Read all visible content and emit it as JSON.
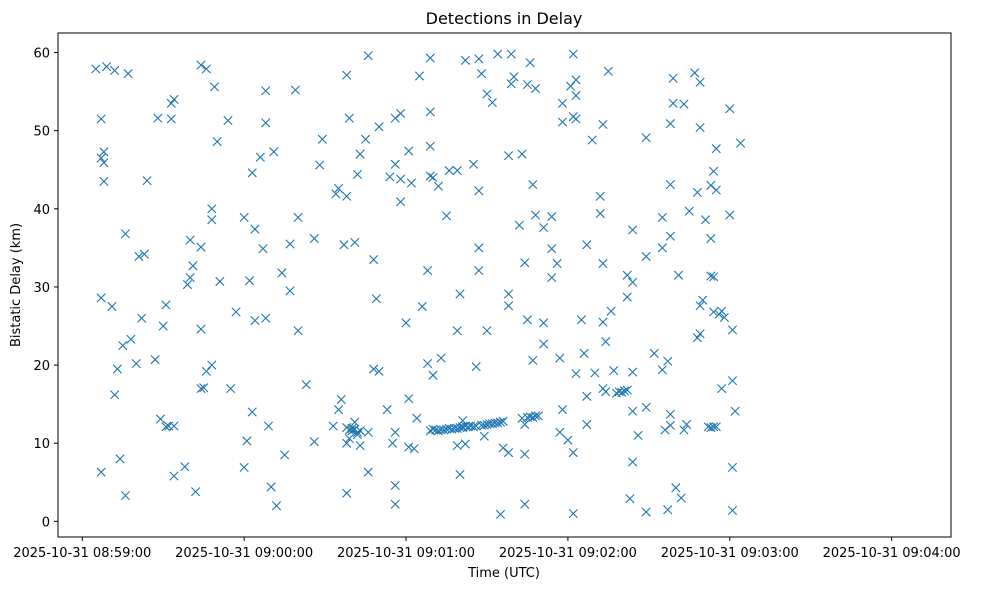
{
  "chart_data": {
    "type": "scatter",
    "title": "Detections in Delay",
    "xlabel": "Time (UTC)",
    "ylabel": "Bistatic Delay (km)",
    "marker": "x",
    "color": "#1f77b4",
    "grid": false,
    "x_tick_labels": [
      "2025-10-31 08:59:00",
      "2025-10-31 09:00:00",
      "2025-10-31 09:01:00",
      "2025-10-31 09:02:00",
      "2025-10-31 09:03:00",
      "2025-10-31 09:04:00"
    ],
    "xlim": [
      "2025-10-31 08:58:51",
      "2025-10-31 09:04:22"
    ],
    "y_ticks": [
      0,
      10,
      20,
      30,
      40,
      50,
      60
    ],
    "ylim": [
      -2,
      62.5
    ],
    "points": [
      [
        "08:59:05",
        57.9
      ],
      [
        "08:59:07",
        6.3
      ],
      [
        "08:59:07",
        28.6
      ],
      [
        "08:59:07",
        51.5
      ],
      [
        "08:59:07",
        46.5
      ],
      [
        "08:59:08",
        47.3
      ],
      [
        "08:59:08",
        43.5
      ],
      [
        "08:59:08",
        45.9
      ],
      [
        "08:59:09",
        58.2
      ],
      [
        "08:59:11",
        27.5
      ],
      [
        "08:59:12",
        57.7
      ],
      [
        "08:59:12",
        16.2
      ],
      [
        "08:59:13",
        19.5
      ],
      [
        "08:59:14",
        8.0
      ],
      [
        "08:59:15",
        22.5
      ],
      [
        "08:59:16",
        3.3
      ],
      [
        "08:59:16",
        36.8
      ],
      [
        "08:59:17",
        57.3
      ],
      [
        "08:59:18",
        23.3
      ],
      [
        "08:59:20",
        20.2
      ],
      [
        "08:59:21",
        33.9
      ],
      [
        "08:59:22",
        26.0
      ],
      [
        "08:59:23",
        34.2
      ],
      [
        "08:59:24",
        43.6
      ],
      [
        "08:59:27",
        20.7
      ],
      [
        "08:59:28",
        51.6
      ],
      [
        "08:59:29",
        13.1
      ],
      [
        "08:59:30",
        25.0
      ],
      [
        "08:59:31",
        27.7
      ],
      [
        "08:59:31",
        12.1
      ],
      [
        "08:59:32",
        12.2
      ],
      [
        "08:59:33",
        51.5
      ],
      [
        "08:59:33",
        53.5
      ],
      [
        "08:59:34",
        54.0
      ],
      [
        "08:59:34",
        12.2
      ],
      [
        "08:59:34",
        5.8
      ],
      [
        "08:59:38",
        7.0
      ],
      [
        "08:59:39",
        30.3
      ],
      [
        "08:59:40",
        36.0
      ],
      [
        "08:59:40",
        31.2
      ],
      [
        "08:59:41",
        32.7
      ],
      [
        "08:59:42",
        3.8
      ],
      [
        "08:59:44",
        35.1
      ],
      [
        "08:59:44",
        24.6
      ],
      [
        "08:59:44",
        17.0
      ],
      [
        "08:59:45",
        17.1
      ],
      [
        "08:59:44",
        58.4
      ],
      [
        "08:59:46",
        57.9
      ],
      [
        "08:59:46",
        19.2
      ],
      [
        "08:59:48",
        20.0
      ],
      [
        "08:59:48",
        40.0
      ],
      [
        "08:59:48",
        38.6
      ],
      [
        "08:59:49",
        55.6
      ],
      [
        "08:59:50",
        48.6
      ],
      [
        "08:59:51",
        30.7
      ],
      [
        "08:59:54",
        51.3
      ],
      [
        "08:59:55",
        17.0
      ],
      [
        "08:59:57",
        26.8
      ],
      [
        "09:00:00",
        38.9
      ],
      [
        "09:00:00",
        6.9
      ],
      [
        "09:00:01",
        10.3
      ],
      [
        "09:00:02",
        30.8
      ],
      [
        "09:00:03",
        44.6
      ],
      [
        "09:00:03",
        14.0
      ],
      [
        "09:00:04",
        37.4
      ],
      [
        "09:00:04",
        25.7
      ],
      [
        "09:00:06",
        46.6
      ],
      [
        "09:00:07",
        34.9
      ],
      [
        "09:00:08",
        55.1
      ],
      [
        "09:00:08",
        51.0
      ],
      [
        "09:00:08",
        26.0
      ],
      [
        "09:00:09",
        12.2
      ],
      [
        "09:00:10",
        4.4
      ],
      [
        "09:00:11",
        47.3
      ],
      [
        "09:00:12",
        2.0
      ],
      [
        "09:00:14",
        31.8
      ],
      [
        "09:00:15",
        8.5
      ],
      [
        "09:00:17",
        35.5
      ],
      [
        "09:00:17",
        29.5
      ],
      [
        "09:00:19",
        55.2
      ],
      [
        "09:00:20",
        38.9
      ],
      [
        "09:00:20",
        24.4
      ],
      [
        "09:00:23",
        17.5
      ],
      [
        "09:00:26",
        10.2
      ],
      [
        "09:00:26",
        36.2
      ],
      [
        "09:00:28",
        45.6
      ],
      [
        "09:00:29",
        48.9
      ],
      [
        "09:00:33",
        12.2
      ],
      [
        "09:00:34",
        41.9
      ],
      [
        "09:00:35",
        14.3
      ],
      [
        "09:00:35",
        42.6
      ],
      [
        "09:00:36",
        15.6
      ],
      [
        "09:00:37",
        35.4
      ],
      [
        "09:00:38",
        57.1
      ],
      [
        "09:00:38",
        12.0
      ],
      [
        "09:00:38",
        41.6
      ],
      [
        "09:00:38",
        10.0
      ],
      [
        "09:00:38",
        3.6
      ],
      [
        "09:00:39",
        11.7
      ],
      [
        "09:00:39",
        51.6
      ],
      [
        "09:00:39",
        10.6
      ],
      [
        "09:00:40",
        11.9
      ],
      [
        "09:00:40",
        11.6
      ],
      [
        "09:00:41",
        35.7
      ],
      [
        "09:00:41",
        12.7
      ],
      [
        "09:00:41",
        11.8
      ],
      [
        "09:00:42",
        11.4
      ],
      [
        "09:00:42",
        11.1
      ],
      [
        "09:00:43",
        9.7
      ],
      [
        "09:00:42",
        44.4
      ],
      [
        "09:00:43",
        47.0
      ],
      [
        "09:00:43",
        11.6
      ],
      [
        "09:00:45",
        48.9
      ],
      [
        "09:00:46",
        11.4
      ],
      [
        "09:00:46",
        6.3
      ],
      [
        "09:00:46",
        59.6
      ],
      [
        "09:00:48",
        33.5
      ],
      [
        "09:00:48",
        19.5
      ],
      [
        "09:00:49",
        28.5
      ],
      [
        "09:00:50",
        19.2
      ],
      [
        "09:00:50",
        50.5
      ],
      [
        "09:00:53",
        14.3
      ],
      [
        "09:00:54",
        44.1
      ],
      [
        "09:00:55",
        10.0
      ],
      [
        "09:00:56",
        11.4
      ],
      [
        "09:00:56",
        2.2
      ],
      [
        "09:00:56",
        4.6
      ],
      [
        "09:00:56",
        45.7
      ],
      [
        "09:00:56",
        51.6
      ],
      [
        "09:00:58",
        40.9
      ],
      [
        "09:00:58",
        43.8
      ],
      [
        "09:00:58",
        52.2
      ],
      [
        "09:01:00",
        25.4
      ],
      [
        "09:01:01",
        9.5
      ],
      [
        "09:01:01",
        15.7
      ],
      [
        "09:01:01",
        47.4
      ],
      [
        "09:01:02",
        43.3
      ],
      [
        "09:01:03",
        9.3
      ],
      [
        "09:01:04",
        13.2
      ],
      [
        "09:01:05",
        57.0
      ],
      [
        "09:01:06",
        27.5
      ],
      [
        "09:01:08",
        32.1
      ],
      [
        "09:01:08",
        20.2
      ],
      [
        "09:01:09",
        59.3
      ],
      [
        "09:01:09",
        52.4
      ],
      [
        "09:01:09",
        48.0
      ],
      [
        "09:01:09",
        44.2
      ],
      [
        "09:01:09",
        11.6
      ],
      [
        "09:01:10",
        18.7
      ],
      [
        "09:01:10",
        44.0
      ],
      [
        "09:01:10",
        11.8
      ],
      [
        "09:01:11",
        11.7
      ],
      [
        "09:01:12",
        11.6
      ],
      [
        "09:01:12",
        42.9
      ],
      [
        "09:01:13",
        11.7
      ],
      [
        "09:01:13",
        20.9
      ],
      [
        "09:01:14",
        11.7
      ],
      [
        "09:01:15",
        11.8
      ],
      [
        "09:01:15",
        39.1
      ],
      [
        "09:01:16",
        11.9
      ],
      [
        "09:01:16",
        44.9
      ],
      [
        "09:01:17",
        11.8
      ],
      [
        "09:01:18",
        11.9
      ],
      [
        "09:01:19",
        11.9
      ],
      [
        "09:01:19",
        24.4
      ],
      [
        "09:01:19",
        9.7
      ],
      [
        "09:01:19",
        44.9
      ],
      [
        "09:01:20",
        12.0
      ],
      [
        "09:01:20",
        6.0
      ],
      [
        "09:01:20",
        29.1
      ],
      [
        "09:01:21",
        12.0
      ],
      [
        "09:01:21",
        12.9
      ],
      [
        "09:01:21",
        12.1
      ],
      [
        "09:01:22",
        12.2
      ],
      [
        "09:01:22",
        9.9
      ],
      [
        "09:01:22",
        59.0
      ],
      [
        "09:01:23",
        12.1
      ],
      [
        "09:01:24",
        12.2
      ],
      [
        "09:01:25",
        12.1
      ],
      [
        "09:01:25",
        45.7
      ],
      [
        "09:01:26",
        12.2
      ],
      [
        "09:01:26",
        19.8
      ],
      [
        "09:01:27",
        42.3
      ],
      [
        "09:01:27",
        32.1
      ],
      [
        "09:01:27",
        35.0
      ],
      [
        "09:01:27",
        59.2
      ],
      [
        "09:01:28",
        12.3
      ],
      [
        "09:01:28",
        57.3
      ],
      [
        "09:01:29",
        12.3
      ],
      [
        "09:01:29",
        10.9
      ],
      [
        "09:01:30",
        12.4
      ],
      [
        "09:01:30",
        24.4
      ],
      [
        "09:01:30",
        54.7
      ],
      [
        "09:01:31",
        12.5
      ],
      [
        "09:01:32",
        12.5
      ],
      [
        "09:01:32",
        53.6
      ],
      [
        "09:01:33",
        12.6
      ],
      [
        "09:01:34",
        12.6
      ],
      [
        "09:01:34",
        59.8
      ],
      [
        "09:01:35",
        12.7
      ],
      [
        "09:01:35",
        0.9
      ],
      [
        "09:01:36",
        9.4
      ],
      [
        "09:01:36",
        12.8
      ],
      [
        "09:01:38",
        8.8
      ],
      [
        "09:01:38",
        27.6
      ],
      [
        "09:01:38",
        29.1
      ],
      [
        "09:01:38",
        46.8
      ],
      [
        "09:01:39",
        56.0
      ],
      [
        "09:01:39",
        59.8
      ],
      [
        "09:01:40",
        56.9
      ],
      [
        "09:01:42",
        37.9
      ],
      [
        "09:01:43",
        47.0
      ],
      [
        "09:01:43",
        13.2
      ],
      [
        "09:01:44",
        33.1
      ],
      [
        "09:01:44",
        8.6
      ],
      [
        "09:01:44",
        2.2
      ],
      [
        "09:01:44",
        12.4
      ],
      [
        "09:01:45",
        13.3
      ],
      [
        "09:01:45",
        55.9
      ],
      [
        "09:01:45",
        25.8
      ],
      [
        "09:01:46",
        58.7
      ],
      [
        "09:01:46",
        13.4
      ],
      [
        "09:01:47",
        43.1
      ],
      [
        "09:01:47",
        20.6
      ],
      [
        "09:01:47",
        13.3
      ],
      [
        "09:01:48",
        13.5
      ],
      [
        "09:01:48",
        39.2
      ],
      [
        "09:01:48",
        55.4
      ],
      [
        "09:01:49",
        13.5
      ],
      [
        "09:01:51",
        37.6
      ],
      [
        "09:01:51",
        25.4
      ],
      [
        "09:01:51",
        22.7
      ],
      [
        "09:01:54",
        34.9
      ],
      [
        "09:01:54",
        39.0
      ],
      [
        "09:01:54",
        31.2
      ],
      [
        "09:01:56",
        33.0
      ],
      [
        "09:01:57",
        20.9
      ],
      [
        "09:01:57",
        11.4
      ],
      [
        "09:01:58",
        14.3
      ],
      [
        "09:01:58",
        51.1
      ],
      [
        "09:01:58",
        53.5
      ],
      [
        "09:02:00",
        10.4
      ],
      [
        "09:02:01",
        55.7
      ],
      [
        "09:02:02",
        8.8
      ],
      [
        "09:02:02",
        51.8
      ],
      [
        "09:02:02",
        1.0
      ],
      [
        "09:02:02",
        59.8
      ],
      [
        "09:02:03",
        18.9
      ],
      [
        "09:02:03",
        54.5
      ],
      [
        "09:02:03",
        51.5
      ],
      [
        "09:02:03",
        56.5
      ],
      [
        "09:02:05",
        25.8
      ],
      [
        "09:02:06",
        21.5
      ],
      [
        "09:02:07",
        16.0
      ],
      [
        "09:02:07",
        12.4
      ],
      [
        "09:02:07",
        35.4
      ],
      [
        "09:02:09",
        48.8
      ],
      [
        "09:02:10",
        19.0
      ],
      [
        "09:02:12",
        39.4
      ],
      [
        "09:02:12",
        41.6
      ],
      [
        "09:02:13",
        50.8
      ],
      [
        "09:02:13",
        33.0
      ],
      [
        "09:02:13",
        25.5
      ],
      [
        "09:02:13",
        17.0
      ],
      [
        "09:02:14",
        16.6
      ],
      [
        "09:02:14",
        23.0
      ],
      [
        "09:02:15",
        57.6
      ],
      [
        "09:02:16",
        26.9
      ],
      [
        "09:02:17",
        19.3
      ],
      [
        "09:02:18",
        16.4
      ],
      [
        "09:02:19",
        16.6
      ],
      [
        "09:02:20",
        16.5
      ],
      [
        "09:02:21",
        16.7
      ],
      [
        "09:02:22",
        28.7
      ],
      [
        "09:02:22",
        31.5
      ],
      [
        "09:02:22",
        16.8
      ],
      [
        "09:02:23",
        2.9
      ],
      [
        "09:02:24",
        30.6
      ],
      [
        "09:02:24",
        7.6
      ],
      [
        "09:02:24",
        14.1
      ],
      [
        "09:02:24",
        19.1
      ],
      [
        "09:02:24",
        37.3
      ],
      [
        "09:02:26",
        11.0
      ],
      [
        "09:02:29",
        49.1
      ],
      [
        "09:02:29",
        33.9
      ],
      [
        "09:02:29",
        14.6
      ],
      [
        "09:02:29",
        1.2
      ],
      [
        "09:02:32",
        21.5
      ],
      [
        "09:02:35",
        38.9
      ],
      [
        "09:02:35",
        35.0
      ],
      [
        "09:02:35",
        19.4
      ],
      [
        "09:02:36",
        11.7
      ],
      [
        "09:02:37",
        20.5
      ],
      [
        "09:02:37",
        1.5
      ],
      [
        "09:02:38",
        12.3
      ],
      [
        "09:02:38",
        13.7
      ],
      [
        "09:02:38",
        43.1
      ],
      [
        "09:02:38",
        36.5
      ],
      [
        "09:02:38",
        50.9
      ],
      [
        "09:02:39",
        56.7
      ],
      [
        "09:02:39",
        53.5
      ],
      [
        "09:02:40",
        4.3
      ],
      [
        "09:02:41",
        31.5
      ],
      [
        "09:02:42",
        3.0
      ],
      [
        "09:02:43",
        53.4
      ],
      [
        "09:02:43",
        11.7
      ],
      [
        "09:02:44",
        12.4
      ],
      [
        "09:02:45",
        39.7
      ],
      [
        "09:02:47",
        57.4
      ],
      [
        "09:02:48",
        42.1
      ],
      [
        "09:02:48",
        23.5
      ],
      [
        "09:02:49",
        27.6
      ],
      [
        "09:02:49",
        24.0
      ],
      [
        "09:02:49",
        50.4
      ],
      [
        "09:02:49",
        56.2
      ],
      [
        "09:02:50",
        28.3
      ],
      [
        "09:02:51",
        38.6
      ],
      [
        "09:02:52",
        12.1
      ],
      [
        "09:02:53",
        43.0
      ],
      [
        "09:02:53",
        31.4
      ],
      [
        "09:02:53",
        12.0
      ],
      [
        "09:02:53",
        36.2
      ],
      [
        "09:02:54",
        31.3
      ],
      [
        "09:02:54",
        12.1
      ],
      [
        "09:02:54",
        44.8
      ],
      [
        "09:02:54",
        26.8
      ],
      [
        "09:02:55",
        12.1
      ],
      [
        "09:02:55",
        42.4
      ],
      [
        "09:02:55",
        47.7
      ],
      [
        "09:02:56",
        26.5
      ],
      [
        "09:02:57",
        17.0
      ],
      [
        "09:02:57",
        26.9
      ],
      [
        "09:02:58",
        26.1
      ],
      [
        "09:03:00",
        39.2
      ],
      [
        "09:03:00",
        52.8
      ],
      [
        "09:03:01",
        24.5
      ],
      [
        "09:03:01",
        6.9
      ],
      [
        "09:03:01",
        18.0
      ],
      [
        "09:03:01",
        1.4
      ],
      [
        "09:03:02",
        14.1
      ],
      [
        "09:03:04",
        48.4
      ]
    ]
  }
}
